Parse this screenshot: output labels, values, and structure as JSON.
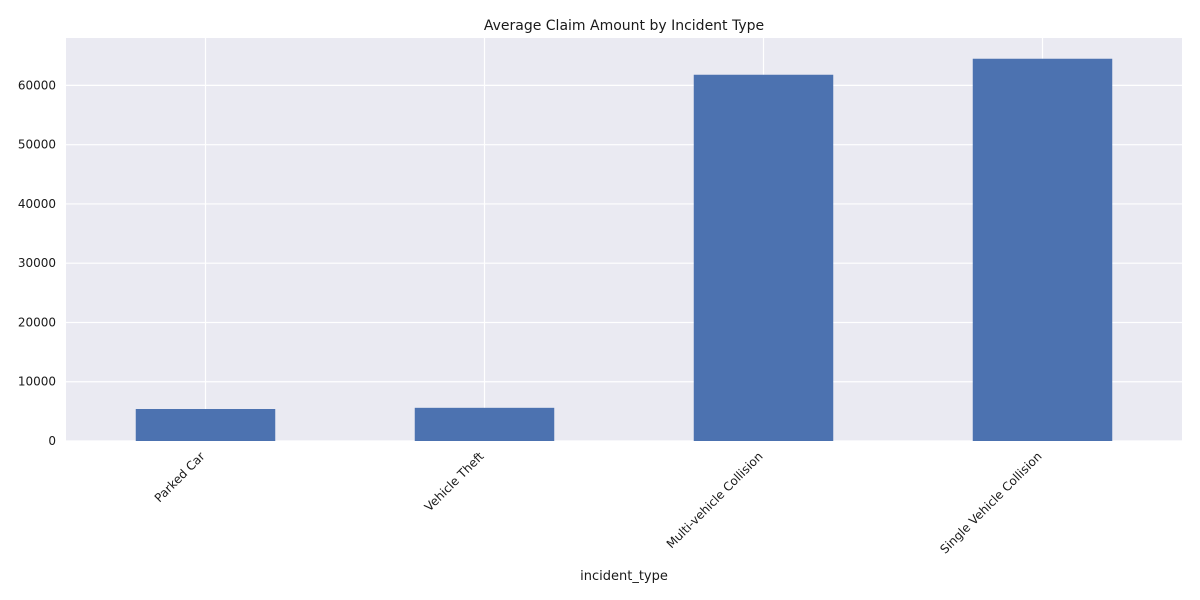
{
  "chart_data": {
    "type": "bar",
    "title": "Average Claim Amount by Incident Type",
    "xlabel": "incident_type",
    "ylabel": "",
    "categories": [
      "Parked Car",
      "Vehicle Theft",
      "Multi-vehicle Collision",
      "Single Vehicle Collision"
    ],
    "values": [
      5400,
      5600,
      61800,
      64500
    ],
    "ylim": [
      0,
      68000
    ],
    "yticks": [
      0,
      10000,
      20000,
      30000,
      40000,
      50000,
      60000
    ],
    "ytick_labels": [
      "0",
      "10000",
      "20000",
      "30000",
      "40000",
      "50000",
      "60000"
    ],
    "grid": true,
    "legend": "none",
    "colors": {
      "bar": "#4c72b0",
      "background": "#eaeaf2",
      "grid": "#ffffff"
    }
  }
}
